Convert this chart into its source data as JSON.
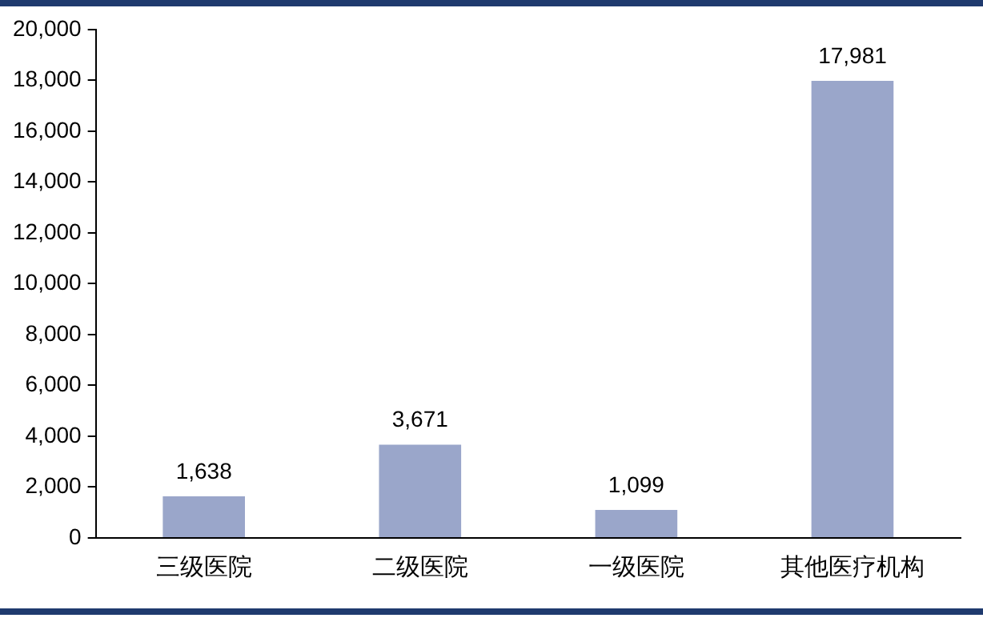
{
  "chart_data": {
    "type": "bar",
    "categories": [
      "三级医院",
      "二级医院",
      "一级医院",
      "其他医疗机构"
    ],
    "values": [
      1638,
      3671,
      1099,
      17981
    ],
    "value_labels": [
      "1,638",
      "3,671",
      "1,099",
      "17,981"
    ],
    "color": "#9aa6ca",
    "ylim": [
      0,
      20000
    ],
    "yticks": [
      0,
      {
        "value": 2000,
        "label": "2,000"
      },
      {
        "value": 4000,
        "label": "4,000"
      },
      {
        "value": 6000,
        "label": "6,000"
      },
      {
        "value": 8000,
        "label": "8,000"
      },
      {
        "value": 10000,
        "label": "10,000"
      },
      {
        "value": 12000,
        "label": "12,000"
      },
      {
        "value": 14000,
        "label": "14,000"
      },
      {
        "value": 16000,
        "label": "16,000"
      },
      {
        "value": 18000,
        "label": "18,000"
      },
      {
        "value": 20000,
        "label": "20,000"
      }
    ],
    "grid": false
  }
}
